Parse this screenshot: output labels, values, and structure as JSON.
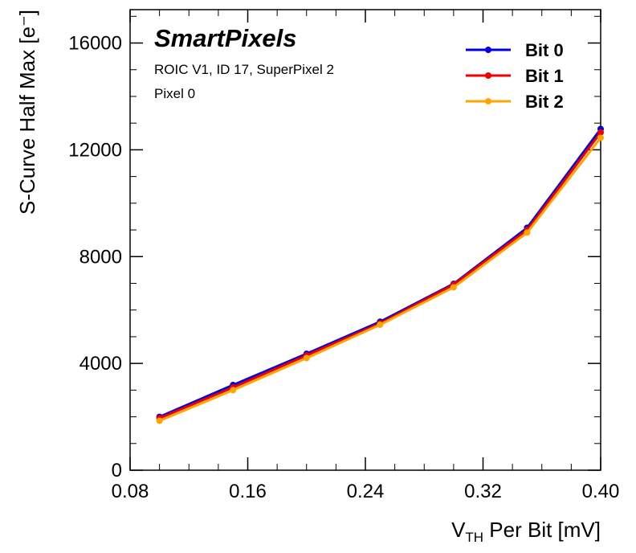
{
  "chart_data": {
    "type": "line",
    "annotations": [
      "SmartPixels",
      "ROIC V1, ID 17, SuperPixel 2",
      "Pixel 0"
    ],
    "xlabel": [
      "V",
      "TH",
      " Per Bit [mV]"
    ],
    "ylabel": "S-Curve Half Max [e⁻]",
    "x": [
      0.1,
      0.15,
      0.2,
      0.25,
      0.3,
      0.35,
      0.4
    ],
    "series": [
      {
        "name": "Bit 0",
        "color": "#0000dd",
        "values": [
          2000,
          3190,
          4360,
          5560,
          6980,
          9080,
          12780
        ]
      },
      {
        "name": "Bit 1",
        "color": "#ee0000",
        "values": [
          1950,
          3100,
          4300,
          5500,
          6950,
          9000,
          12650
        ]
      },
      {
        "name": "Bit 2",
        "color": "#ffa500",
        "values": [
          1850,
          3000,
          4200,
          5450,
          6850,
          8900,
          12450
        ]
      }
    ],
    "xlim": [
      0.08,
      0.4
    ],
    "xticks": [
      0.08,
      0.16,
      0.24,
      0.32,
      {
        "value": 0.4,
        "label": "0.40"
      }
    ],
    "ylim": [
      0,
      17250
    ],
    "yticks": [
      0,
      4000,
      8000,
      12000,
      16000
    ],
    "legend": "upper right"
  }
}
